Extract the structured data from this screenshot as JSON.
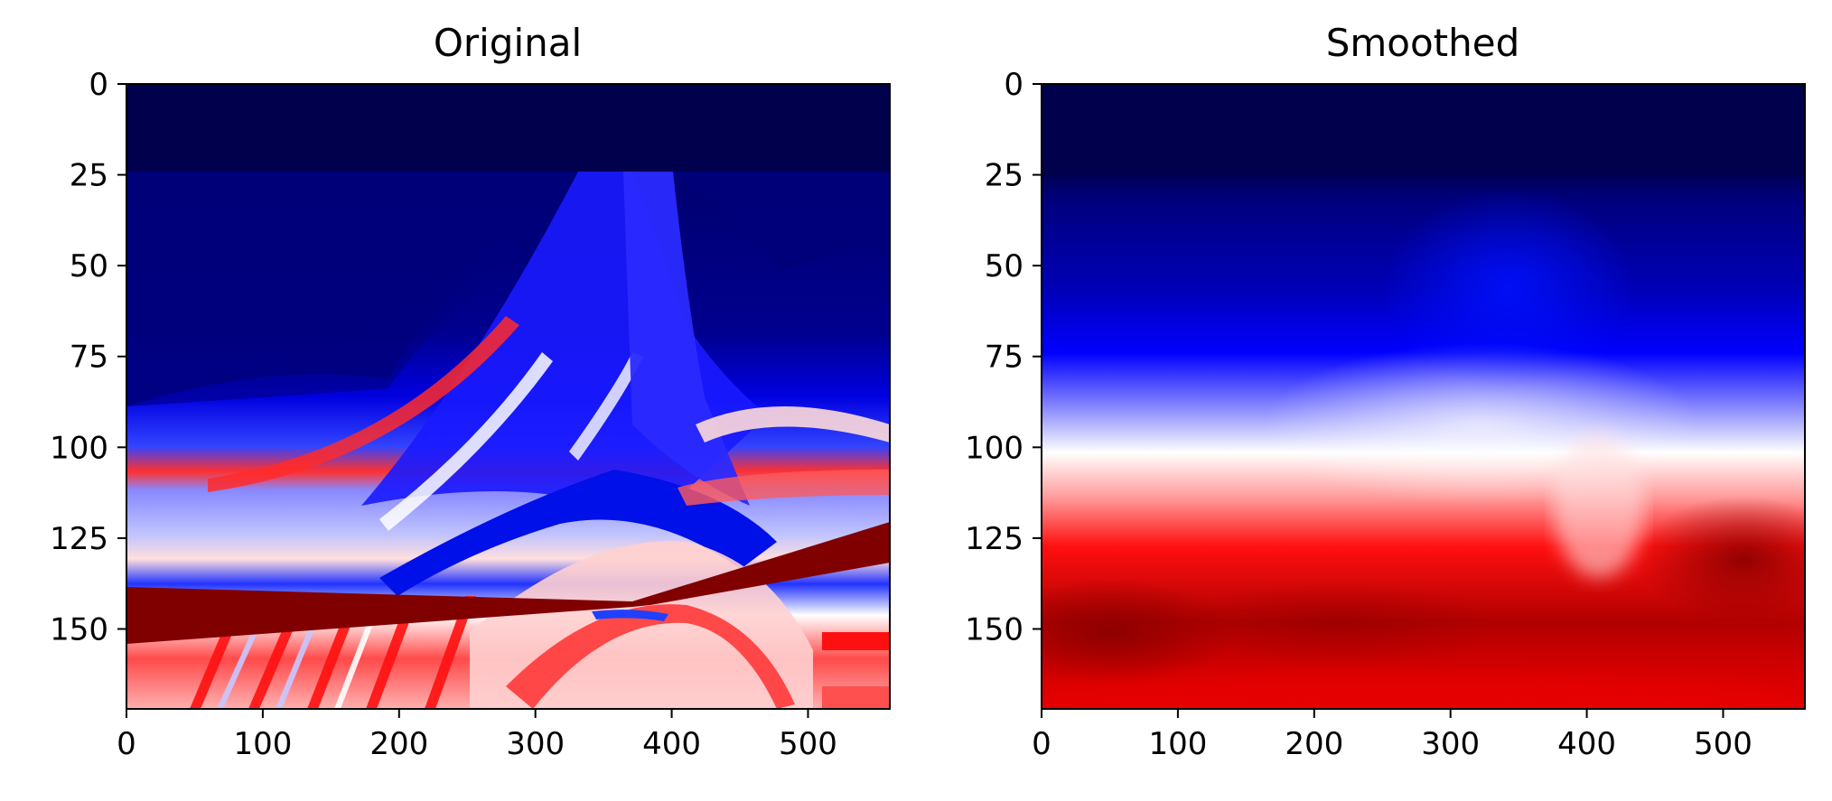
{
  "chart_data": [
    {
      "type": "heatmap",
      "title": "Original",
      "colormap": "seismic",
      "colors": {
        "deep_blue": "#00004c",
        "blue": "#0000ff",
        "white": "#ffffff",
        "red": "#ff0000",
        "dark_red": "#800000"
      },
      "xlim": [
        0,
        560
      ],
      "ylim": [
        172,
        0
      ],
      "xticks": [
        0,
        100,
        200,
        300,
        400,
        500
      ],
      "yticks": [
        0,
        25,
        50,
        75,
        100,
        125,
        150
      ],
      "xlabel": "",
      "ylabel": "",
      "grid": false,
      "features": {
        "water_layer_depth": 24,
        "blue_white_transition_depth": 100,
        "dome_crest_x": 340,
        "fault_x_range": [
          330,
          410
        ],
        "dark_red_wedge": {
          "x_range": [
            0,
            560
          ],
          "depth_left": [
            138,
            154
          ],
          "depth_right": [
            120,
            132
          ]
        }
      }
    },
    {
      "type": "heatmap",
      "title": "Smoothed",
      "colormap": "seismic",
      "colors": {
        "deep_blue": "#00004c",
        "blue": "#0000ff",
        "white": "#ffffff",
        "red": "#ff0000",
        "dark_red": "#a00000"
      },
      "xlim": [
        0,
        560
      ],
      "ylim": [
        172,
        0
      ],
      "xticks": [
        0,
        100,
        200,
        300,
        400,
        500
      ],
      "yticks": [
        0,
        25,
        50,
        75,
        100,
        125,
        150
      ],
      "xlabel": "",
      "ylabel": "",
      "grid": false,
      "features": {
        "water_layer_depth": 24,
        "white_band_depth": 100,
        "dark_red_zone_depth": 150
      }
    }
  ]
}
